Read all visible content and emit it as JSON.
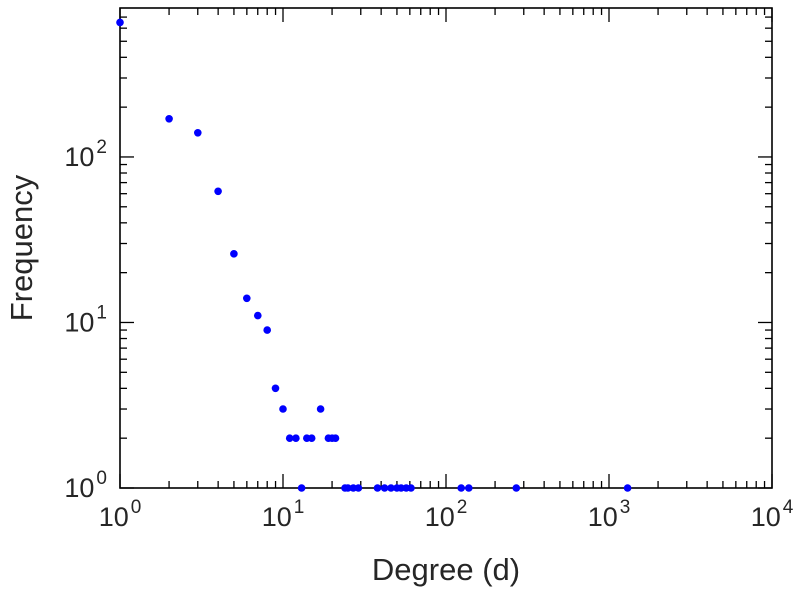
{
  "chart_data": {
    "type": "scatter",
    "title": "",
    "xlabel": "Degree (d)",
    "ylabel": "Frequency",
    "x_scale": "log",
    "y_scale": "log",
    "x_range": [
      1,
      10000
    ],
    "y_range": [
      1,
      794
    ],
    "x_log_range": [
      0,
      4
    ],
    "y_log_range": [
      0,
      2.9
    ],
    "x_tick_exponents": [
      0,
      1,
      2,
      3,
      4
    ],
    "y_tick_exponents": [
      0,
      1,
      2
    ],
    "tick_label_base": "10",
    "grid": false,
    "legend": false,
    "marker_color": "#0000ff",
    "frame_color": "#000000",
    "points": [
      [
        1,
        650
      ],
      [
        2,
        170
      ],
      [
        3,
        140
      ],
      [
        4,
        62
      ],
      [
        5,
        26
      ],
      [
        6,
        14
      ],
      [
        7,
        11
      ],
      [
        8,
        9
      ],
      [
        9,
        4
      ],
      [
        10,
        3
      ],
      [
        11,
        2
      ],
      [
        12,
        2
      ],
      [
        14,
        2
      ],
      [
        15,
        2
      ],
      [
        17,
        3
      ],
      [
        19,
        2
      ],
      [
        20,
        2
      ],
      [
        21,
        2
      ],
      [
        13,
        1
      ],
      [
        24,
        1
      ],
      [
        25,
        1
      ],
      [
        27,
        1
      ],
      [
        29,
        1
      ],
      [
        38,
        1
      ],
      [
        42,
        1
      ],
      [
        46,
        1
      ],
      [
        50,
        1
      ],
      [
        53,
        1
      ],
      [
        57,
        1
      ],
      [
        61,
        1
      ],
      [
        124,
        1
      ],
      [
        138,
        1
      ],
      [
        270,
        1
      ],
      [
        1300,
        1
      ]
    ]
  }
}
